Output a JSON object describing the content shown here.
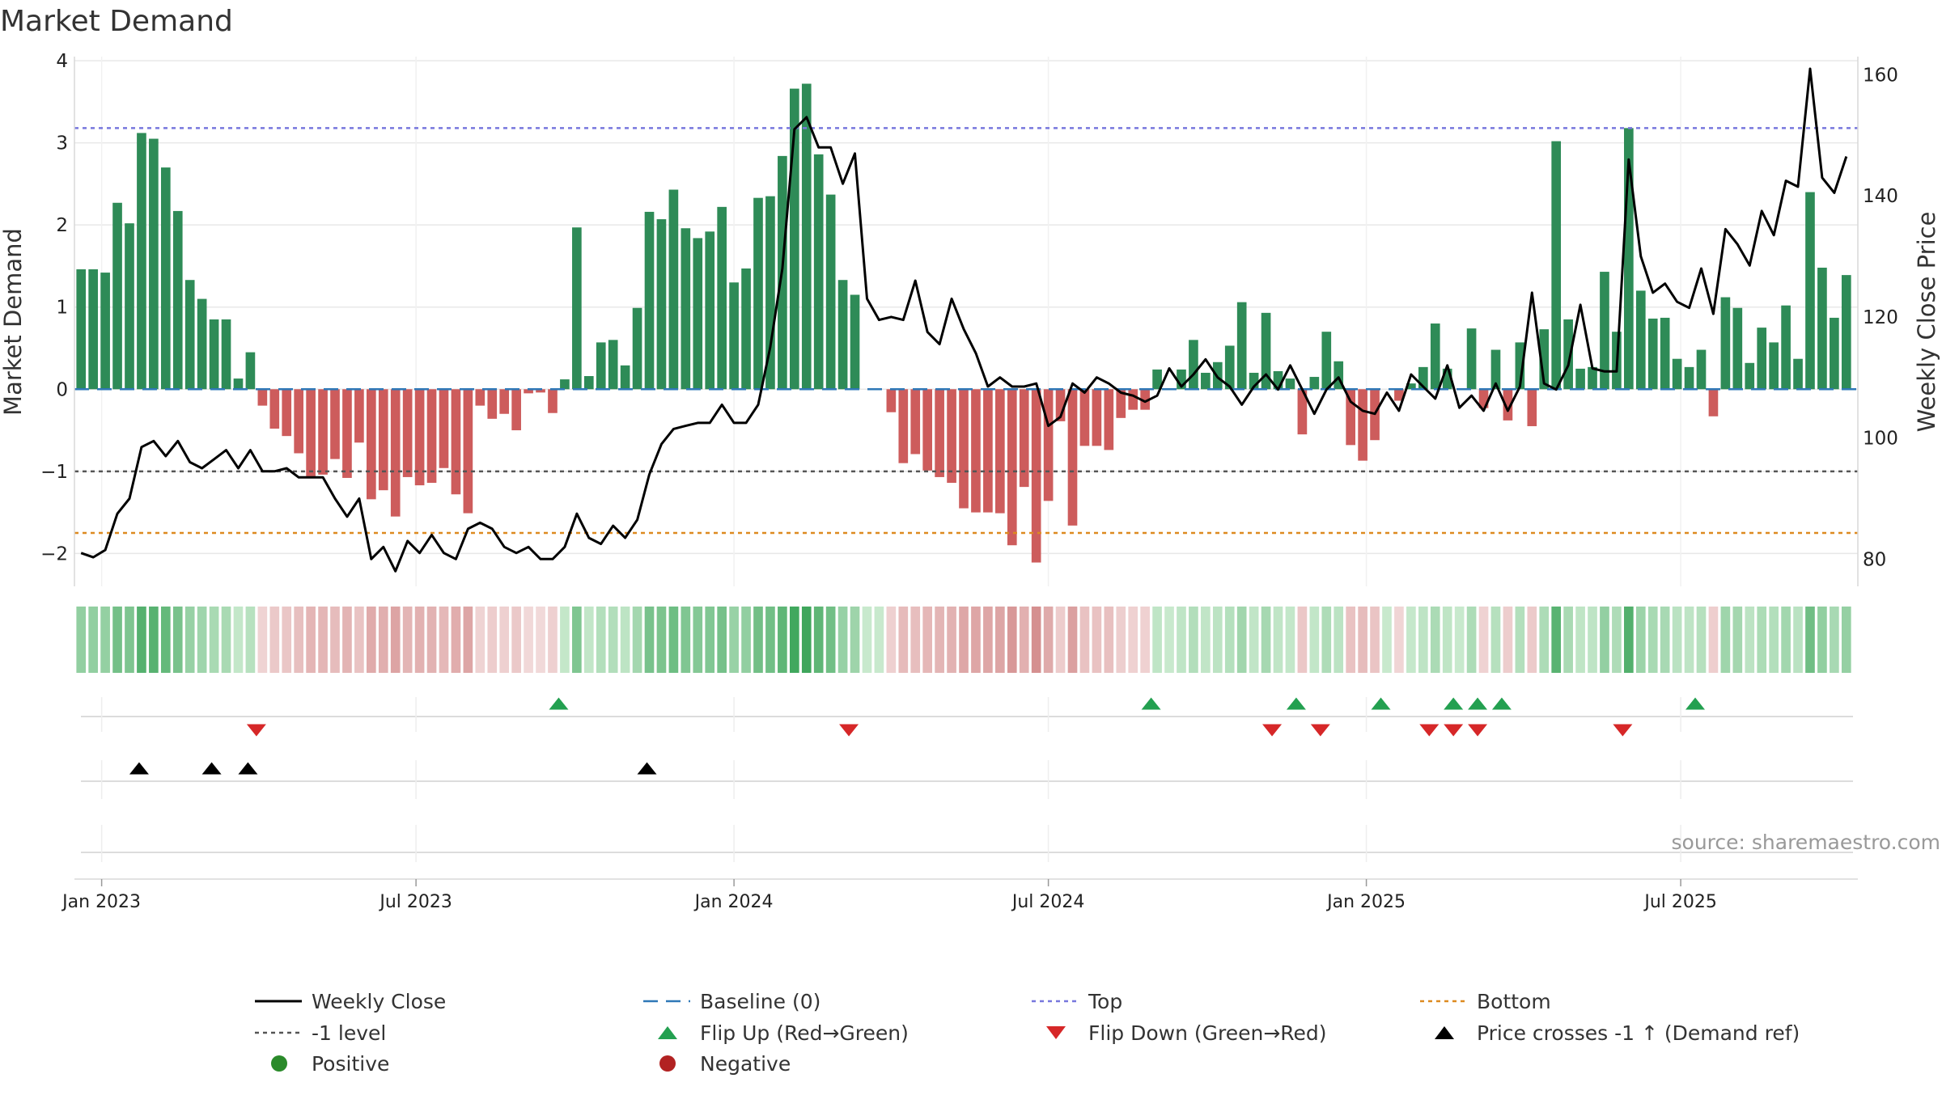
{
  "chart_data": {
    "type": "bar",
    "title": "Market Demand",
    "ylabel": "Market Demand",
    "y2label": "Weekly Close Price",
    "ylim": [
      -2.4,
      4.05
    ],
    "y2lim": [
      75.5,
      163
    ],
    "yticks": [
      4,
      3,
      2,
      1,
      0,
      -1,
      -2
    ],
    "ytick_labels": [
      "4",
      "3",
      "2",
      "1",
      "0",
      "−1",
      "−2"
    ],
    "y2ticks": [
      160,
      140,
      120,
      100,
      80
    ],
    "y2tick_labels": [
      "160",
      "140",
      "120",
      "100",
      "80"
    ],
    "x_start": "2022-12-19",
    "xtick_labels": [
      "Jan 2023",
      "Jul 2023",
      "Jan 2024",
      "Jul 2024",
      "Jan 2025",
      "Jul 2025"
    ],
    "xtick_weeks": [
      1.7,
      27.7,
      54,
      80,
      106.3,
      132.3
    ],
    "reference_lines": {
      "top": 3.18,
      "bottom": -1.75,
      "minus_one": -1.0,
      "baseline": 0
    },
    "demand": [
      1.46,
      1.46,
      1.42,
      2.27,
      2.02,
      3.12,
      3.05,
      2.7,
      2.17,
      1.33,
      1.1,
      0.85,
      0.85,
      0.13,
      0.45,
      -0.2,
      -0.48,
      -0.57,
      -0.78,
      -1.06,
      -1.04,
      -0.85,
      -1.08,
      -0.65,
      -1.34,
      -1.23,
      -1.55,
      -1.07,
      -1.17,
      -1.14,
      -0.96,
      -1.28,
      -1.51,
      -0.2,
      -0.36,
      -0.3,
      -0.5,
      -0.05,
      -0.04,
      -0.29,
      0.12,
      1.97,
      0.16,
      0.57,
      0.6,
      0.29,
      0.99,
      2.16,
      2.07,
      2.43,
      1.96,
      1.84,
      1.92,
      2.22,
      1.3,
      1.47,
      2.33,
      2.35,
      2.84,
      3.66,
      3.72,
      2.86,
      2.37,
      1.33,
      1.15,
      0,
      0,
      -0.28,
      -0.9,
      -0.79,
      -0.99,
      -1.07,
      -1.14,
      -1.45,
      -1.5,
      -1.5,
      -1.51,
      -1.9,
      -1.19,
      -2.11,
      -1.36,
      -0.39,
      -1.66,
      -0.69,
      -0.69,
      -0.74,
      -0.35,
      -0.25,
      -0.25,
      0.24,
      0.0,
      0.24,
      0.6,
      0.2,
      0.33,
      0.53,
      1.06,
      0.2,
      0.93,
      0.22,
      0.13,
      -0.55,
      0.15,
      0.7,
      0.34,
      -0.68,
      -0.87,
      -0.62,
      0.0,
      -0.14,
      0.07,
      0.27,
      0.8,
      0.25,
      0.0,
      0.74,
      -0.23,
      0.48,
      -0.38,
      0.57,
      -0.45,
      0.73,
      3.02,
      0.85,
      0.25,
      0.27,
      1.43,
      0.7,
      3.18,
      1.2,
      0.86,
      0.87,
      0.37,
      0.27,
      0.48,
      -0.33,
      1.12,
      0.99,
      0.32,
      0.75,
      0.57,
      1.02,
      0.37,
      2.4,
      1.48,
      0.87,
      1.39
    ],
    "weekly_close": [
      81,
      80.3,
      81.5,
      87.5,
      90,
      98.5,
      99.5,
      97,
      99.5,
      96,
      95,
      96.5,
      98,
      95,
      98,
      94.5,
      94.5,
      95,
      93.5,
      93.5,
      93.5,
      90,
      87,
      90,
      80,
      82,
      78,
      83,
      81,
      84,
      81,
      80,
      85,
      86,
      85,
      82,
      81,
      82,
      80,
      80,
      82,
      87.5,
      83.5,
      82.5,
      85.5,
      83.5,
      86.5,
      94,
      99,
      101.5,
      102,
      102.5,
      102.5,
      105.5,
      102.5,
      102.5,
      105.5,
      115,
      128,
      151,
      153,
      148,
      148,
      142,
      147,
      123,
      119.5,
      120,
      119.5,
      126,
      117.5,
      115.5,
      123,
      118,
      114,
      108.5,
      110,
      108.5,
      108.5,
      109,
      102,
      103.5,
      109,
      107.5,
      110,
      109,
      107.5,
      107,
      106,
      107,
      111.5,
      108.5,
      110.5,
      113,
      110,
      108.5,
      105.5,
      108.5,
      110.5,
      108,
      112,
      108,
      104,
      108,
      110,
      106,
      104.5,
      104,
      107.5,
      104.5,
      110.5,
      108.5,
      106.5,
      112,
      105,
      107,
      104.5,
      109,
      104.5,
      108.5,
      124,
      109,
      108,
      112,
      122,
      111.5,
      111,
      111,
      146,
      130,
      124,
      125.5,
      122.5,
      121.5,
      128,
      120.5,
      134.5,
      132,
      128.5,
      137.5,
      133.5,
      142.5,
      141.5,
      161,
      143,
      140.5,
      146.5
    ],
    "flip_up_weeks": [
      39.5,
      88.5,
      100.5,
      107.5,
      113.5,
      115.5,
      117.5,
      133.5
    ],
    "flip_down_weeks": [
      14.5,
      63.5,
      98.5,
      102.5,
      111.5,
      113.5,
      115.5,
      127.5
    ],
    "price_cross_weeks": [
      4.8,
      10.8,
      13.8,
      46.8
    ],
    "legend": [
      {
        "label": "Weekly Close",
        "marker": "line",
        "color": "#000000"
      },
      {
        "label": "Baseline (0)",
        "marker": "dash",
        "color": "#2f78b7"
      },
      {
        "label": "Top",
        "marker": "dot",
        "color": "#7777dd"
      },
      {
        "label": "Bottom",
        "marker": "dot",
        "color": "#dd8a20"
      },
      {
        "label": "-1 level",
        "marker": "dot",
        "color": "#555555"
      },
      {
        "label": "Flip Up (Red→Green)",
        "marker": "triangle-up",
        "color": "#23a050"
      },
      {
        "label": "Flip Down (Green→Red)",
        "marker": "triangle-down",
        "color": "#d62728"
      },
      {
        "label": "Price crosses -1 ↑ (Demand ref)",
        "marker": "triangle-up",
        "color": "#000000"
      },
      {
        "label": "Positive",
        "marker": "circle",
        "color": "#2a8a2a"
      },
      {
        "label": "Negative",
        "marker": "circle",
        "color": "#b22222"
      }
    ]
  },
  "source_text": "source: sharemaestro.com",
  "colors": {
    "positive_bar": "#2e8b57",
    "negative_bar": "#cd5c5c",
    "grid": "#e8e8e8"
  }
}
